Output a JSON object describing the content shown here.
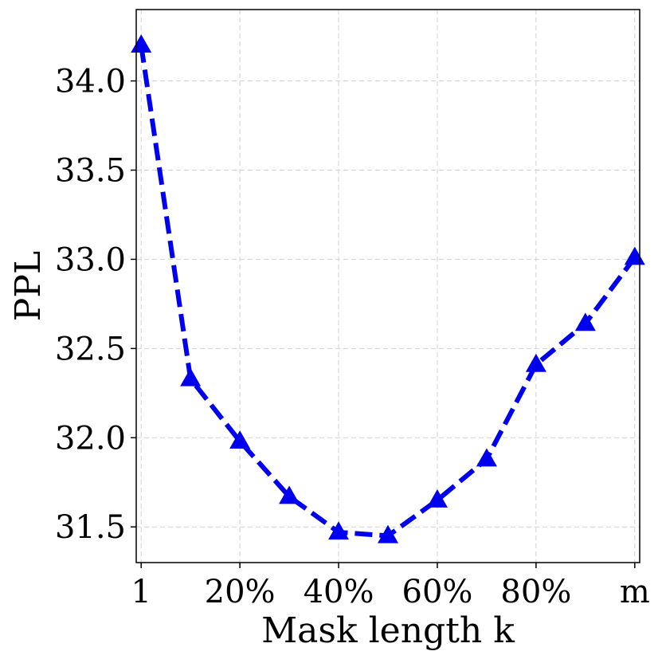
{
  "chart_data": {
    "type": "line",
    "title": "",
    "xlabel": "Mask length k",
    "ylabel": "PPL",
    "x_tick_labels": [
      "1",
      "20%",
      "40%",
      "60%",
      "80%",
      "m"
    ],
    "x_tick_positions": [
      0,
      2,
      4,
      6,
      8,
      10
    ],
    "x": [
      0,
      1,
      2,
      3,
      4,
      5,
      6,
      7,
      8,
      9,
      10
    ],
    "y_ticks": [
      31.5,
      32.0,
      32.5,
      33.0,
      33.5,
      34.0
    ],
    "y_tick_labels": [
      "31.5",
      "32.0",
      "32.5",
      "33.0",
      "33.5",
      "34.0"
    ],
    "ylim": [
      31.3,
      34.4
    ],
    "xlim": [
      -0.1,
      10.1
    ],
    "grid": true,
    "series": [
      {
        "values": [
          34.2,
          32.33,
          31.98,
          31.67,
          31.47,
          31.45,
          31.65,
          31.88,
          32.41,
          32.64,
          33.01
        ],
        "color": "#0000ee",
        "line_style": "dashed",
        "marker": "triangle-up"
      }
    ]
  }
}
